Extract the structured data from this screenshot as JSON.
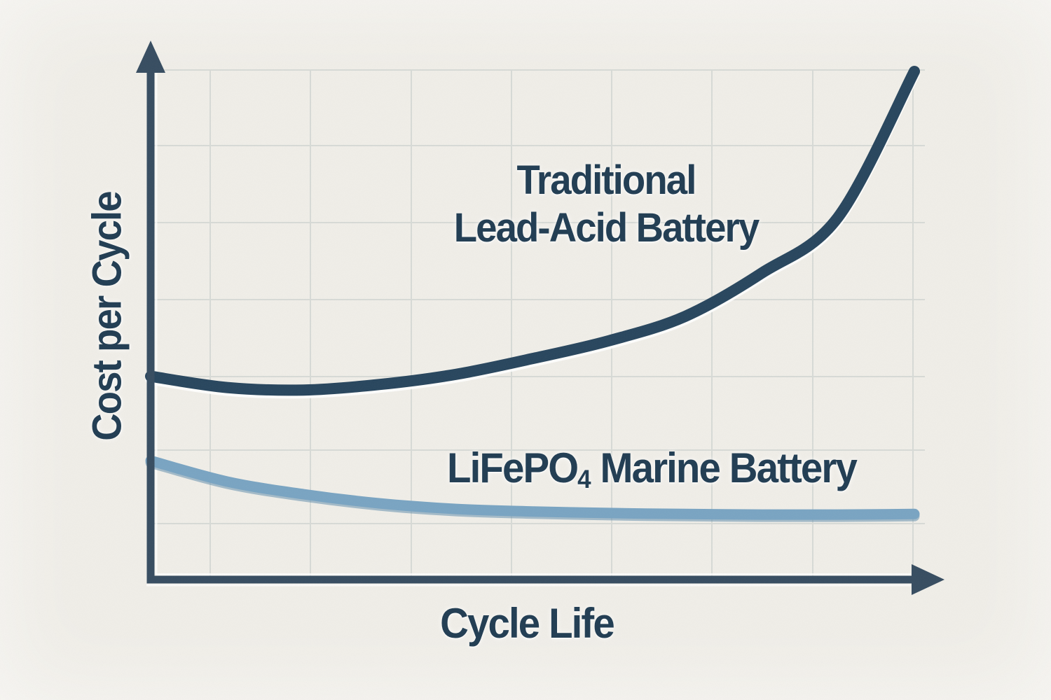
{
  "chart": {
    "y_axis_label": "Cost per Cycle",
    "x_axis_label": "Cycle Life",
    "series1_label_line1": "Traditional",
    "series1_label_line2": "Lead-Acid Battery",
    "series2_label_prefix": "LiFePO",
    "series2_label_sub": "4",
    "series2_label_suffix": " Marine Battery"
  },
  "colors": {
    "background": "#f0eee8",
    "gridline": "#d7dad6",
    "axis": "#364c60",
    "lead_acid_curve": "#27455d",
    "lifepo4_curve": "#79a4c2",
    "label_text": "#203c52"
  },
  "chart_data": {
    "type": "line",
    "title": "",
    "xlabel": "Cycle Life",
    "ylabel": "Cost per Cycle",
    "axis_numeric_labels": false,
    "x_unit": "percent of x-axis length (axes are unlabeled, qualitative)",
    "y_unit": "relative cost per cycle (qualitative, estimated from pixels)",
    "x": [
      0,
      10,
      20,
      30,
      40,
      50,
      60,
      70,
      80,
      90,
      100
    ],
    "ylim": [
      0,
      10.5
    ],
    "grid": true,
    "legend": "inline text labels next to each curve",
    "series": [
      {
        "name": "Traditional Lead-Acid Battery",
        "color": "#27455d",
        "values": [
          4.0,
          3.78,
          3.73,
          3.84,
          4.04,
          4.35,
          4.7,
          5.18,
          6.03,
          7.13,
          10.0
        ]
      },
      {
        "name": "LiFePO4 Marine Battery",
        "color": "#79a4c2",
        "values": [
          2.34,
          1.93,
          1.68,
          1.5,
          1.39,
          1.34,
          1.31,
          1.29,
          1.28,
          1.28,
          1.29
        ]
      }
    ]
  }
}
